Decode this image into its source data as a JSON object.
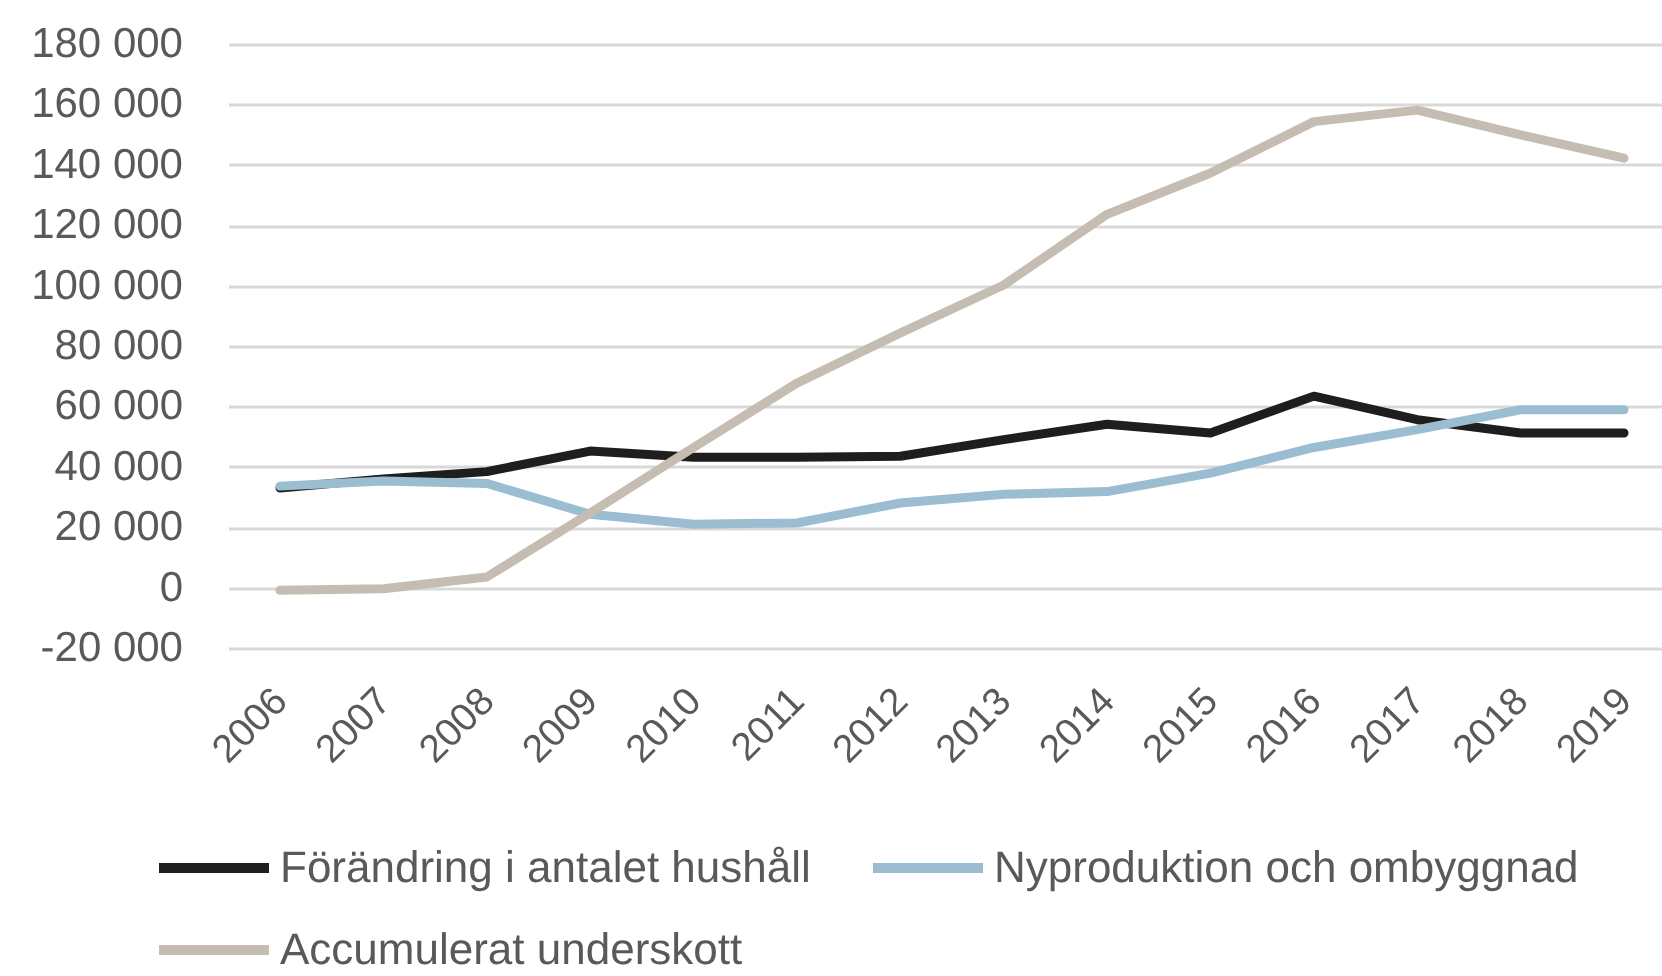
{
  "chart_data": {
    "type": "line",
    "categories": [
      "2006",
      "2007",
      "2008",
      "2009",
      "2010",
      "2011",
      "2012",
      "2013",
      "2014",
      "2015",
      "2016",
      "2017",
      "2018",
      "2019"
    ],
    "series": [
      {
        "name": "Förändring i antalet hushåll",
        "color": "#1e1e1e",
        "values": [
          33000,
          36000,
          38400,
          45200,
          43200,
          43200,
          43500,
          49000,
          54100,
          51200,
          63400,
          55600,
          51200,
          51200
        ]
      },
      {
        "name": "Nyproduktion och ombyggnad",
        "color": "#9bbdd2",
        "values": [
          33600,
          35300,
          34500,
          24300,
          21000,
          21400,
          28000,
          30900,
          31800,
          37900,
          46400,
          52300,
          58900,
          58900
        ]
      },
      {
        "name": "Accumulerat underskott",
        "color": "#c5bdb2",
        "values": [
          -900,
          -400,
          3500,
          24700,
          46400,
          67700,
          84300,
          100200,
          123600,
          137300,
          154300,
          158100,
          149900,
          142200
        ]
      }
    ],
    "ylim": [
      -20000,
      180000
    ],
    "yticks": [
      {
        "value": -20000,
        "label": "-20 000"
      },
      0,
      {
        "value": 20000,
        "label": "20 000"
      },
      {
        "value": 40000,
        "label": "40 000"
      },
      {
        "value": 60000,
        "label": "60 000"
      },
      {
        "value": 80000,
        "label": "80 000"
      },
      {
        "value": 100000,
        "label": "100 000"
      },
      {
        "value": 120000,
        "label": "120 000"
      },
      {
        "value": 140000,
        "label": "140 000"
      },
      {
        "value": 160000,
        "label": "160 000"
      },
      {
        "value": 180000,
        "label": "180 000"
      }
    ],
    "grid": "y",
    "legend": "bottom",
    "marker": "none",
    "line_style": "solid"
  }
}
